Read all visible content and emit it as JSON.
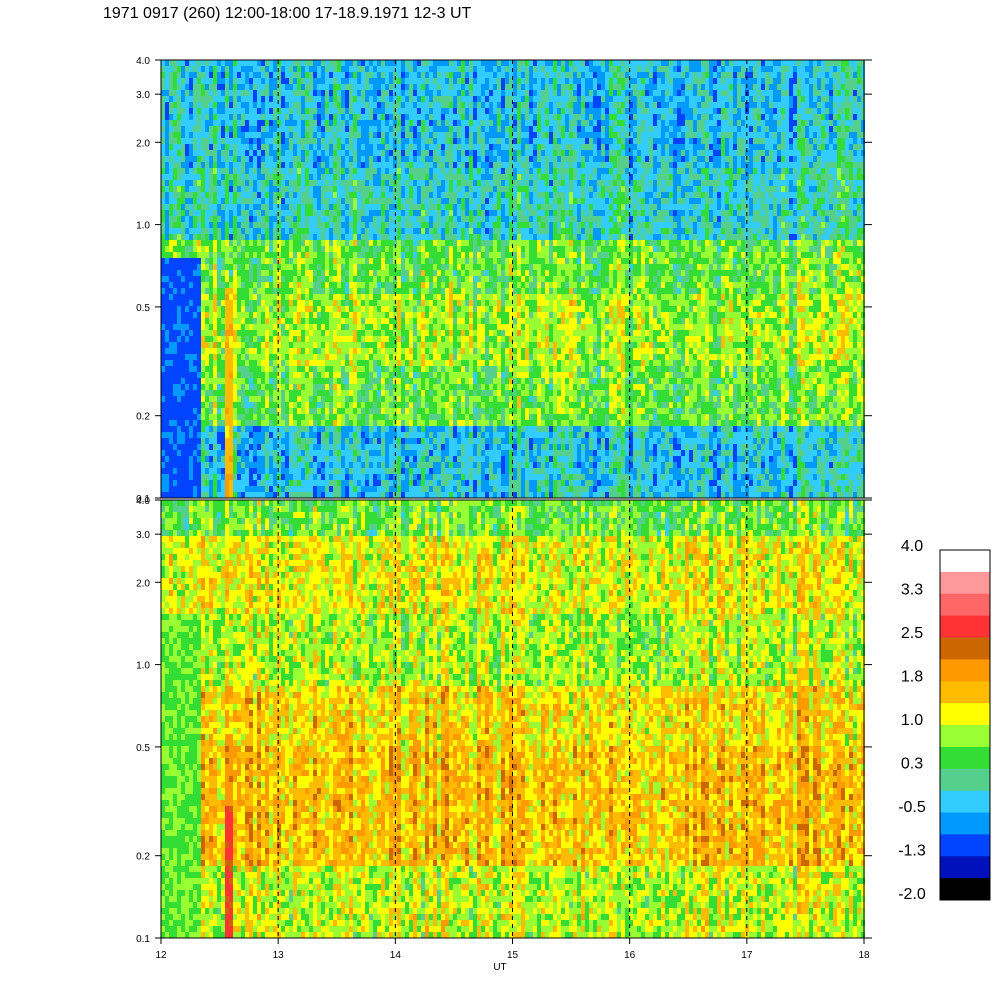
{
  "title": "1971 0917 (260) 12:00-18:00 17-18.9.1971  12-3 UT",
  "chart_data": [
    {
      "type": "heatmap",
      "panel": "upper",
      "x_range": [
        12,
        18
      ],
      "y_range": [
        0.1,
        4.0
      ],
      "y_scale": "log",
      "y_ticks": [
        "0.1",
        "0.2",
        "0.5",
        "1.0",
        "2.0",
        "3.0",
        "4.0"
      ],
      "y_tick_values": [
        0.1,
        0.2,
        0.5,
        1.0,
        2.0,
        3.0,
        4.0
      ],
      "dashed_gridlines_x": [
        13,
        14,
        15,
        16,
        17
      ],
      "band_levels": [
        {
          "y_max": 0.18,
          "level": -0.3
        },
        {
          "y_max": 0.3,
          "level": 0.6
        },
        {
          "y_max": 0.55,
          "level": 0.9
        },
        {
          "y_max": 0.9,
          "level": 0.6
        },
        {
          "y_max": 1.6,
          "level": -0.1
        },
        {
          "y_max": 4.0,
          "level": -0.3
        }
      ],
      "features": [
        {
          "x": [
            12.0,
            12.35
          ],
          "y": [
            0.1,
            0.75
          ],
          "level": -1.0
        },
        {
          "x": [
            12.55,
            12.62
          ],
          "y": [
            0.1,
            0.6
          ],
          "level": 1.6
        }
      ]
    },
    {
      "type": "heatmap",
      "panel": "lower",
      "x_range": [
        12,
        18
      ],
      "y_range": [
        0.1,
        4.0
      ],
      "y_scale": "log",
      "y_ticks": [
        "0.1",
        "0.2",
        "0.5",
        "1.0",
        "2.0",
        "3.0",
        "4.0"
      ],
      "y_tick_values": [
        0.1,
        0.2,
        0.5,
        1.0,
        2.0,
        3.0,
        4.0
      ],
      "x_ticks": [
        "12",
        "13",
        "14",
        "15",
        "16",
        "17",
        "18"
      ],
      "x_tick_values": [
        12,
        13,
        14,
        15,
        16,
        17,
        18
      ],
      "xlabel": "UT",
      "dashed_gridlines_x": [
        13,
        14,
        15,
        16,
        17
      ],
      "band_levels": [
        {
          "y_max": 0.18,
          "level": 1.0
        },
        {
          "y_max": 0.5,
          "level": 1.6
        },
        {
          "y_max": 0.85,
          "level": 1.4
        },
        {
          "y_max": 1.5,
          "level": 0.9
        },
        {
          "y_max": 3.0,
          "level": 1.2
        },
        {
          "y_max": 4.0,
          "level": 0.6
        }
      ],
      "features": [
        {
          "x": [
            12.0,
            12.35
          ],
          "y": [
            0.1,
            1.5
          ],
          "level": 0.6
        },
        {
          "x": [
            12.53,
            12.63
          ],
          "y": [
            0.1,
            0.3
          ],
          "level": 2.6
        },
        {
          "x": [
            12.53,
            12.63
          ],
          "y": [
            0.3,
            0.55
          ],
          "level": 2.0
        }
      ]
    }
  ],
  "colorbar": {
    "labels": [
      "4.0",
      "3.3",
      "2.5",
      "1.8",
      "1.0",
      "0.3",
      "-0.5",
      "-1.3",
      "-2.0"
    ],
    "colors": [
      "#ffffff",
      "#ff9999",
      "#ff6666",
      "#ff3333",
      "#cc6600",
      "#ff9900",
      "#ffbb00",
      "#ffff00",
      "#99ff33",
      "#33dd33",
      "#55d08c",
      "#33ccff",
      "#0099ff",
      "#0044ff",
      "#0011bb",
      "#000000"
    ]
  }
}
